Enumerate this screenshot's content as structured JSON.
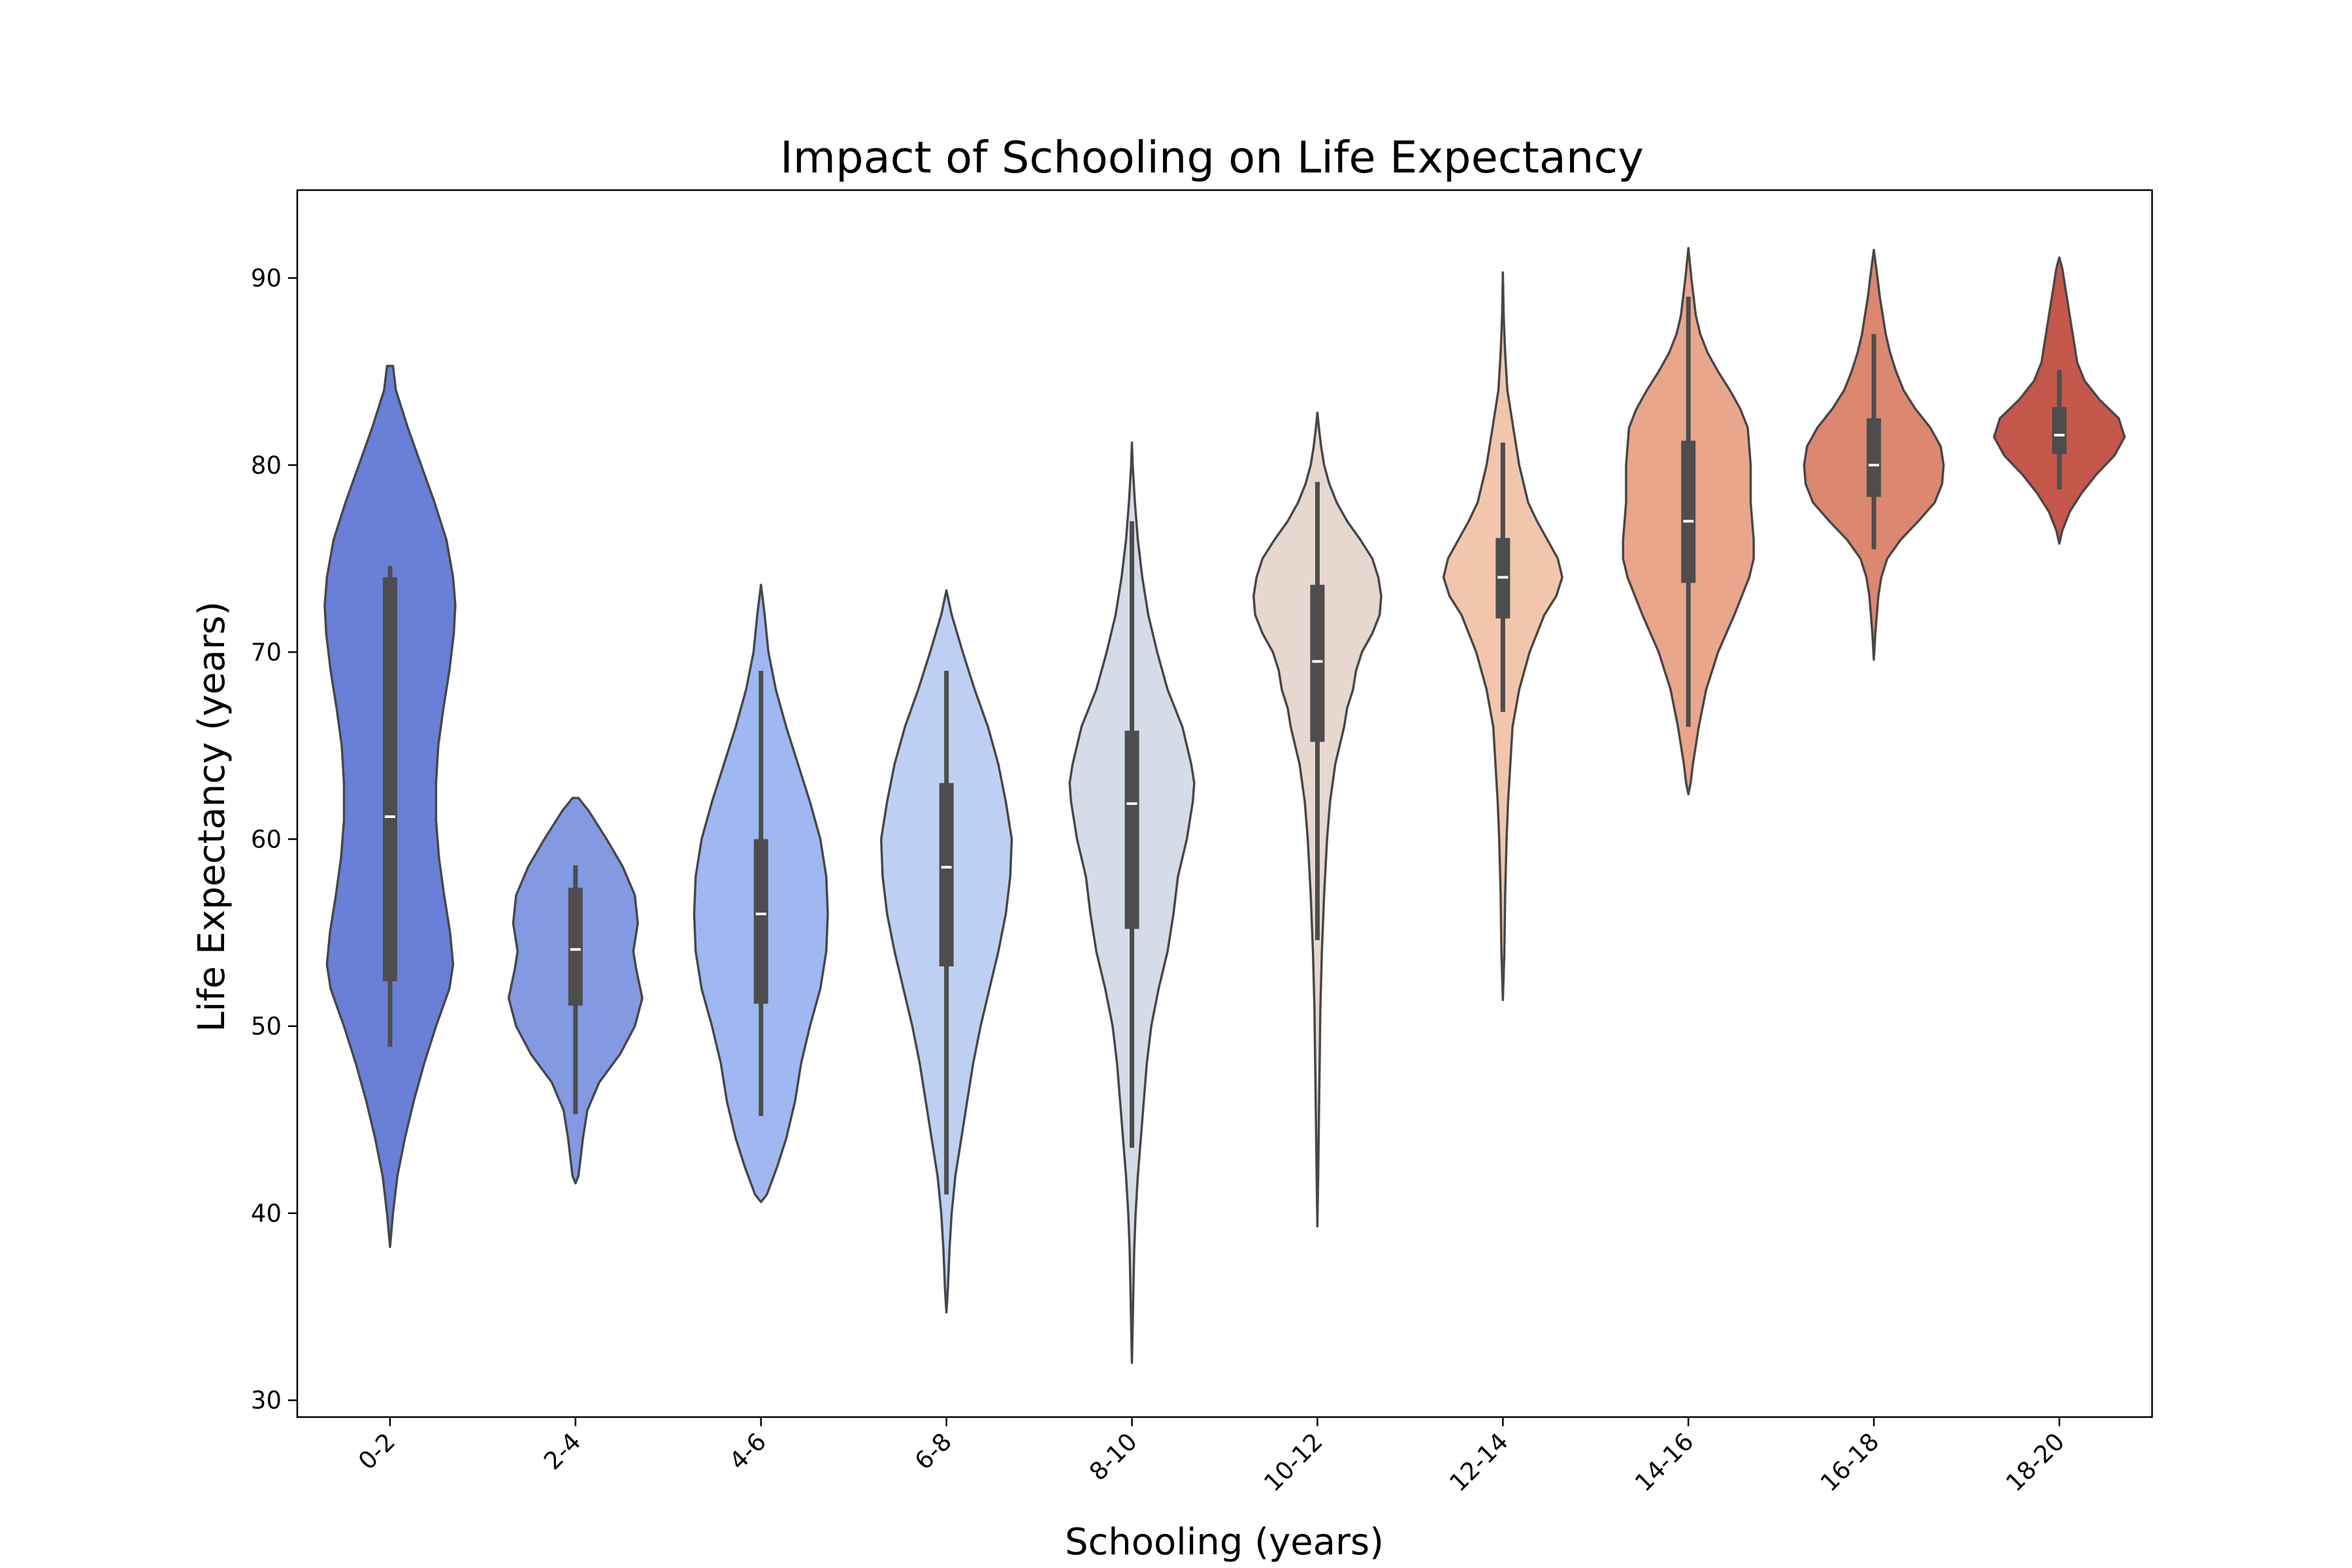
{
  "chart_data": {
    "type": "violin",
    "title": "Impact of Schooling on Life Expectancy",
    "xlabel": "Schooling (years)",
    "ylabel": "Life Expectancy (years)",
    "ylim": [
      29.1,
      94.7
    ],
    "yticks": [
      30,
      40,
      50,
      60,
      70,
      80,
      90
    ],
    "grid": false,
    "palette": "coolwarm",
    "categories": [
      "0-2",
      "2-4",
      "4-6",
      "6-8",
      "8-10",
      "10-12",
      "12-14",
      "14-16",
      "16-18",
      "18-20"
    ],
    "groups": [
      {
        "category": "0-2",
        "color": "#6a7fd8",
        "min": 48.9,
        "q1": 52.4,
        "median": 61.2,
        "q3": 74.0,
        "max": 74.6,
        "kde_min": 38.2,
        "kde_max": 85.3,
        "density": [
          [
            38.2,
            0.0
          ],
          [
            40,
            0.04
          ],
          [
            42,
            0.1
          ],
          [
            44,
            0.2
          ],
          [
            46,
            0.32
          ],
          [
            48,
            0.46
          ],
          [
            50,
            0.62
          ],
          [
            52,
            0.8
          ],
          [
            53.3,
            0.85
          ],
          [
            55,
            0.81
          ],
          [
            57,
            0.73
          ],
          [
            59,
            0.66
          ],
          [
            61,
            0.62
          ],
          [
            63,
            0.62
          ],
          [
            65,
            0.65
          ],
          [
            67,
            0.72
          ],
          [
            69,
            0.8
          ],
          [
            71,
            0.86
          ],
          [
            72.5,
            0.88
          ],
          [
            74,
            0.85
          ],
          [
            76,
            0.76
          ],
          [
            78,
            0.6
          ],
          [
            80,
            0.42
          ],
          [
            82,
            0.24
          ],
          [
            84,
            0.08
          ],
          [
            85.3,
            0.04
          ]
        ]
      },
      {
        "category": "2-4",
        "color": "#8399e2",
        "min": 45.3,
        "q1": 51.1,
        "median": 54.1,
        "q3": 57.4,
        "max": 58.6,
        "kde_min": 41.6,
        "kde_max": 62.2,
        "density": [
          [
            41.6,
            0.0
          ],
          [
            42,
            0.04
          ],
          [
            44,
            0.1
          ],
          [
            45.5,
            0.16
          ],
          [
            47,
            0.32
          ],
          [
            48.5,
            0.6
          ],
          [
            50,
            0.8
          ],
          [
            51.5,
            0.9
          ],
          [
            53,
            0.82
          ],
          [
            54,
            0.78
          ],
          [
            55.5,
            0.84
          ],
          [
            57,
            0.8
          ],
          [
            58.5,
            0.64
          ],
          [
            60,
            0.42
          ],
          [
            61.5,
            0.18
          ],
          [
            62.2,
            0.04
          ]
        ]
      },
      {
        "category": "4-6",
        "color": "#9fb8f2",
        "min": 45.2,
        "q1": 51.2,
        "median": 56.0,
        "q3": 60.0,
        "max": 69.0,
        "kde_min": 40.6,
        "kde_max": 73.6,
        "density": [
          [
            40.6,
            0.0
          ],
          [
            41,
            0.08
          ],
          [
            42.5,
            0.22
          ],
          [
            44,
            0.34
          ],
          [
            46,
            0.46
          ],
          [
            48,
            0.54
          ],
          [
            50,
            0.66
          ],
          [
            52,
            0.8
          ],
          [
            54,
            0.88
          ],
          [
            56,
            0.9
          ],
          [
            58,
            0.88
          ],
          [
            60,
            0.8
          ],
          [
            62,
            0.66
          ],
          [
            64,
            0.5
          ],
          [
            66,
            0.34
          ],
          [
            68,
            0.2
          ],
          [
            70,
            0.1
          ],
          [
            72,
            0.05
          ],
          [
            73.6,
            0.0
          ]
        ]
      },
      {
        "category": "6-8",
        "color": "#bdd0f4",
        "min": 41.0,
        "q1": 53.2,
        "median": 58.5,
        "q3": 63.0,
        "max": 69.0,
        "kde_min": 34.7,
        "kde_max": 73.3,
        "density": [
          [
            34.7,
            0.0
          ],
          [
            36,
            0.02
          ],
          [
            38,
            0.04
          ],
          [
            40,
            0.07
          ],
          [
            42,
            0.12
          ],
          [
            44,
            0.2
          ],
          [
            46,
            0.28
          ],
          [
            48,
            0.36
          ],
          [
            50,
            0.46
          ],
          [
            52,
            0.58
          ],
          [
            54,
            0.7
          ],
          [
            56,
            0.8
          ],
          [
            58,
            0.86
          ],
          [
            60,
            0.88
          ],
          [
            62,
            0.8
          ],
          [
            64,
            0.7
          ],
          [
            66,
            0.56
          ],
          [
            68,
            0.38
          ],
          [
            70,
            0.22
          ],
          [
            72,
            0.07
          ],
          [
            73.3,
            0.0
          ]
        ]
      },
      {
        "category": "8-10",
        "color": "#d5dbe7",
        "min": 43.5,
        "q1": 55.2,
        "median": 61.9,
        "q3": 65.8,
        "max": 77.0,
        "kde_min": 32.0,
        "kde_max": 81.2,
        "density": [
          [
            32.0,
            0.0
          ],
          [
            34,
            0.01
          ],
          [
            36,
            0.02
          ],
          [
            38,
            0.03
          ],
          [
            40,
            0.05
          ],
          [
            42,
            0.08
          ],
          [
            44,
            0.12
          ],
          [
            46,
            0.16
          ],
          [
            48,
            0.2
          ],
          [
            50,
            0.26
          ],
          [
            52,
            0.36
          ],
          [
            54,
            0.48
          ],
          [
            56,
            0.56
          ],
          [
            58,
            0.62
          ],
          [
            60,
            0.74
          ],
          [
            62,
            0.82
          ],
          [
            63,
            0.84
          ],
          [
            64,
            0.8
          ],
          [
            66,
            0.68
          ],
          [
            68,
            0.48
          ],
          [
            70,
            0.34
          ],
          [
            72,
            0.22
          ],
          [
            74,
            0.14
          ],
          [
            76,
            0.08
          ],
          [
            78,
            0.04
          ],
          [
            80,
            0.01
          ],
          [
            81.2,
            0.0
          ]
        ]
      },
      {
        "category": "10-12",
        "color": "#e6d7cf",
        "min": 54.6,
        "q1": 65.2,
        "median": 69.5,
        "q3": 73.6,
        "max": 79.1,
        "kde_min": 39.3,
        "kde_max": 82.8,
        "density": [
          [
            39.3,
            0.0
          ],
          [
            42,
            0.01
          ],
          [
            45,
            0.02
          ],
          [
            48,
            0.03
          ],
          [
            51,
            0.04
          ],
          [
            54,
            0.06
          ],
          [
            57,
            0.09
          ],
          [
            60,
            0.13
          ],
          [
            62,
            0.17
          ],
          [
            64,
            0.24
          ],
          [
            66,
            0.36
          ],
          [
            67,
            0.4
          ],
          [
            68,
            0.48
          ],
          [
            69,
            0.52
          ],
          [
            70,
            0.6
          ],
          [
            71,
            0.74
          ],
          [
            72,
            0.84
          ],
          [
            73,
            0.86
          ],
          [
            74,
            0.82
          ],
          [
            75,
            0.74
          ],
          [
            76,
            0.58
          ],
          [
            77,
            0.4
          ],
          [
            78,
            0.26
          ],
          [
            79,
            0.16
          ],
          [
            80,
            0.09
          ],
          [
            81,
            0.05
          ],
          [
            82,
            0.02
          ],
          [
            82.8,
            0.0
          ]
        ]
      },
      {
        "category": "12-14",
        "color": "#f2c6ad",
        "min": 66.8,
        "q1": 71.8,
        "median": 74.0,
        "q3": 76.1,
        "max": 81.2,
        "kde_min": 51.4,
        "kde_max": 90.3,
        "density": [
          [
            51.4,
            0.0
          ],
          [
            54,
            0.02
          ],
          [
            57,
            0.03
          ],
          [
            60,
            0.05
          ],
          [
            62,
            0.07
          ],
          [
            64,
            0.1
          ],
          [
            66,
            0.13
          ],
          [
            68,
            0.22
          ],
          [
            70,
            0.36
          ],
          [
            72,
            0.56
          ],
          [
            73,
            0.72
          ],
          [
            74,
            0.8
          ],
          [
            75,
            0.74
          ],
          [
            76,
            0.6
          ],
          [
            77,
            0.46
          ],
          [
            78,
            0.34
          ],
          [
            80,
            0.22
          ],
          [
            82,
            0.14
          ],
          [
            84,
            0.06
          ],
          [
            86,
            0.03
          ],
          [
            88,
            0.01
          ],
          [
            90.3,
            0.0
          ]
        ]
      },
      {
        "category": "14-16",
        "color": "#e9a68b",
        "min": 66.0,
        "q1": 73.7,
        "median": 77.0,
        "q3": 81.3,
        "max": 89.0,
        "kde_min": 62.4,
        "kde_max": 91.6,
        "density": [
          [
            62.4,
            0.0
          ],
          [
            63,
            0.03
          ],
          [
            64,
            0.06
          ],
          [
            65,
            0.1
          ],
          [
            66,
            0.14
          ],
          [
            68,
            0.24
          ],
          [
            70,
            0.4
          ],
          [
            72,
            0.62
          ],
          [
            74,
            0.82
          ],
          [
            75,
            0.88
          ],
          [
            76,
            0.88
          ],
          [
            77,
            0.86
          ],
          [
            78,
            0.84
          ],
          [
            80,
            0.84
          ],
          [
            82,
            0.8
          ],
          [
            83,
            0.7
          ],
          [
            84,
            0.56
          ],
          [
            85,
            0.4
          ],
          [
            86,
            0.26
          ],
          [
            87,
            0.16
          ],
          [
            88,
            0.1
          ],
          [
            90,
            0.04
          ],
          [
            91.6,
            0.0
          ]
        ]
      },
      {
        "category": "16-18",
        "color": "#dc8770",
        "min": 75.5,
        "q1": 78.3,
        "median": 80.0,
        "q3": 82.5,
        "max": 87.0,
        "kde_min": 69.6,
        "kde_max": 91.5,
        "density": [
          [
            69.6,
            0.0
          ],
          [
            71,
            0.02
          ],
          [
            72,
            0.04
          ],
          [
            73,
            0.06
          ],
          [
            74,
            0.1
          ],
          [
            75,
            0.18
          ],
          [
            76,
            0.36
          ],
          [
            77,
            0.6
          ],
          [
            78,
            0.82
          ],
          [
            79,
            0.92
          ],
          [
            80,
            0.94
          ],
          [
            81,
            0.9
          ],
          [
            82,
            0.76
          ],
          [
            83,
            0.56
          ],
          [
            84,
            0.4
          ],
          [
            85,
            0.3
          ],
          [
            86,
            0.22
          ],
          [
            87,
            0.16
          ],
          [
            88,
            0.12
          ],
          [
            89,
            0.08
          ],
          [
            90,
            0.05
          ],
          [
            91.5,
            0.0
          ]
        ]
      },
      {
        "category": "18-20",
        "color": "#c5574b",
        "min": 78.7,
        "q1": 80.6,
        "median": 81.6,
        "q3": 83.1,
        "max": 85.1,
        "kde_min": 75.8,
        "kde_max": 91.1,
        "density": [
          [
            75.8,
            0.0
          ],
          [
            76.5,
            0.04
          ],
          [
            77.5,
            0.14
          ],
          [
            78.5,
            0.3
          ],
          [
            79.5,
            0.5
          ],
          [
            80.5,
            0.74
          ],
          [
            81.5,
            0.88
          ],
          [
            82.5,
            0.8
          ],
          [
            83.5,
            0.54
          ],
          [
            84.5,
            0.34
          ],
          [
            85.5,
            0.24
          ],
          [
            86.5,
            0.2
          ],
          [
            87.5,
            0.16
          ],
          [
            88.5,
            0.12
          ],
          [
            89.5,
            0.08
          ],
          [
            90.5,
            0.04
          ],
          [
            91.1,
            0.0
          ]
        ]
      }
    ]
  }
}
